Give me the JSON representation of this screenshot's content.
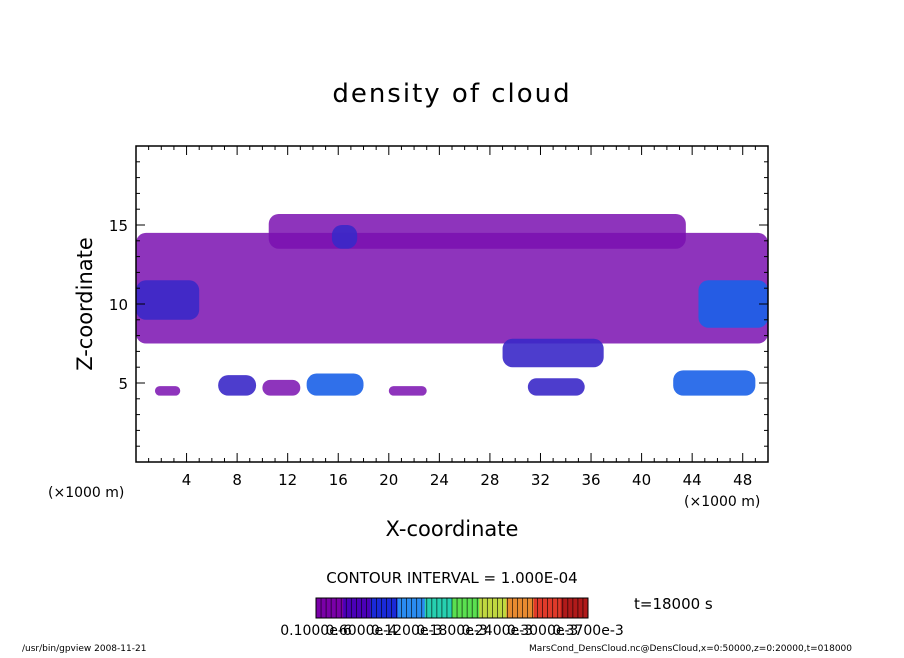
{
  "chart_data": {
    "type": "heatmap",
    "title": "density of cloud",
    "xlabel": "X-coordinate",
    "ylabel": "Z-coordinate",
    "x_unit": "(×1000 m)",
    "y_unit": "(×1000 m)",
    "xlim": [
      0,
      50
    ],
    "ylim": [
      0,
      20
    ],
    "x_ticks": [
      4,
      8,
      12,
      16,
      20,
      24,
      28,
      32,
      36,
      40,
      44,
      48
    ],
    "y_ticks": [
      5,
      10,
      15
    ],
    "contour_interval": "CONTOUR INTERVAL = 1.000E-04",
    "time_label": "t=18000 s",
    "colorbar_labels": [
      "0.1000e-6",
      "0.6000e-4",
      "0.1200e-3",
      "0.1800e-3",
      "0.2400e-3",
      "0.3000e-3",
      "0.3700e-3"
    ],
    "colorbar_colors": [
      "#7a00a8",
      "#4a00b8",
      "#1a2ad8",
      "#2a8cf0",
      "#26d0b0",
      "#5ae050",
      "#c0d840",
      "#e88a30",
      "#e03a2a",
      "#b01a1a"
    ],
    "footer_left": "/usr/bin/gpview  2008-11-21",
    "footer_right": "MarsCond_DensCloud.nc@DensCloud,x=0:50000,z=0:20000,t=018000",
    "regions": [
      {
        "x0": 0,
        "x1": 50,
        "z0": 7.5,
        "z1": 14.5,
        "level": 0
      },
      {
        "x0": 10.5,
        "x1": 43.5,
        "z0": 13.5,
        "z1": 15.7,
        "level": 0
      },
      {
        "x0": 0,
        "x1": 5,
        "z0": 9.0,
        "z1": 11.5,
        "level": 1
      },
      {
        "x0": 15.5,
        "x1": 17.5,
        "z0": 13.5,
        "z1": 15.0,
        "level": 1
      },
      {
        "x0": 44.5,
        "x1": 50,
        "z0": 8.5,
        "z1": 11.5,
        "level": 2
      },
      {
        "x0": 29,
        "x1": 37,
        "z0": 6.0,
        "z1": 7.8,
        "level": 1
      },
      {
        "x0": 1.5,
        "x1": 3.5,
        "z0": 4.2,
        "z1": 4.8,
        "level": 0
      },
      {
        "x0": 6.5,
        "x1": 9.5,
        "z0": 4.2,
        "z1": 5.5,
        "level": 1
      },
      {
        "x0": 10,
        "x1": 13,
        "z0": 4.2,
        "z1": 5.2,
        "level": 0
      },
      {
        "x0": 13.5,
        "x1": 18,
        "z0": 4.2,
        "z1": 5.6,
        "level": 2
      },
      {
        "x0": 20,
        "x1": 23,
        "z0": 4.2,
        "z1": 4.8,
        "level": 0
      },
      {
        "x0": 31,
        "x1": 35.5,
        "z0": 4.2,
        "z1": 5.3,
        "level": 1
      },
      {
        "x0": 42.5,
        "x1": 49,
        "z0": 4.2,
        "z1": 5.8,
        "level": 2
      }
    ]
  }
}
